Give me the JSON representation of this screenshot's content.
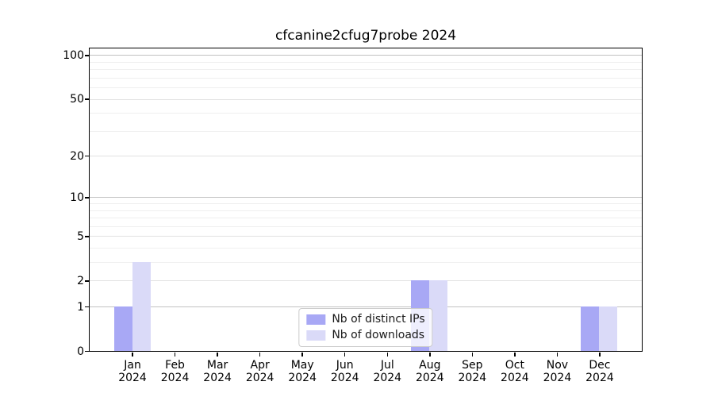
{
  "title": "cfcanine2cfug7probe 2024",
  "chart_data": {
    "type": "bar",
    "title": "cfcanine2cfug7probe 2024",
    "categories": [
      "Jan",
      "Feb",
      "Mar",
      "Apr",
      "May",
      "Jun",
      "Jul",
      "Aug",
      "Sep",
      "Oct",
      "Nov",
      "Dec"
    ],
    "xtick_year": "2024",
    "series": [
      {
        "name": "Nb of distinct IPs",
        "color": "#a8a8f5",
        "values": [
          1,
          0,
          0,
          0,
          0,
          0,
          0,
          2,
          0,
          0,
          0,
          1
        ]
      },
      {
        "name": "Nb of downloads",
        "color": "#dadaf8",
        "values": [
          3,
          0,
          0,
          0,
          0,
          0,
          0,
          2,
          0,
          0,
          0,
          1
        ]
      }
    ],
    "yscale": "log10(1+y)",
    "ylim": [
      0,
      111
    ],
    "yticks": [
      0,
      1,
      2,
      5,
      10,
      20,
      50,
      100
    ],
    "decade_yticks": [
      1,
      10,
      100
    ],
    "minor_yticks": [
      3,
      4,
      6,
      7,
      8,
      9,
      30,
      40,
      60,
      70,
      80,
      90
    ],
    "grid": true,
    "legend_position": "lower center"
  },
  "colors": {
    "bar_distinct_ips": "#a8a8f5",
    "bar_downloads": "#dadaf8",
    "grid_decade": "#c2c2c2",
    "grid_major": "#e2e2e2",
    "grid_minor": "#efefef",
    "spine": "#000000",
    "legend_border": "#cccccc"
  }
}
